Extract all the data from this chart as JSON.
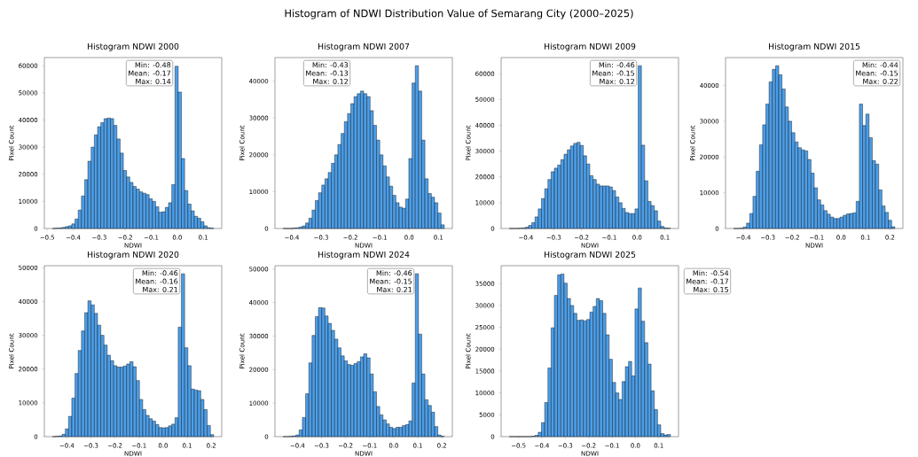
{
  "chart_data": [
    {
      "type": "other",
      "title": "Histogram of NDWI Distribution Value of Semarang City (2000–2025)"
    },
    {
      "type": "histogram",
      "title": "Histogram NDWI 2000",
      "xlabel": "NDWI",
      "ylabel": "Pixel Count",
      "color": "#4c9ee8",
      "bins": [
        -0.48,
        -0.4676,
        -0.4552,
        -0.4428,
        -0.4304,
        -0.418,
        -0.4056,
        -0.3932,
        -0.3808,
        -0.3684,
        -0.356,
        -0.3436,
        -0.3312,
        -0.3188,
        -0.3064,
        -0.294,
        -0.2816,
        -0.2692,
        -0.2568,
        -0.2444,
        -0.232,
        -0.2196,
        -0.2072,
        -0.1948,
        -0.1824,
        -0.17,
        -0.1576,
        -0.1452,
        -0.1328,
        -0.1204,
        -0.108,
        -0.0956,
        -0.0832,
        -0.0708,
        -0.0584,
        -0.046,
        -0.0336,
        -0.0212,
        -0.0088,
        0.0036,
        0.016,
        0.0284,
        0.0408,
        0.0532,
        0.0656,
        0.078,
        0.0904,
        0.1028,
        0.1152,
        0.1276,
        0.14
      ],
      "values": [
        0,
        100,
        200,
        400,
        700,
        1000,
        1700,
        3500,
        6800,
        12000,
        18000,
        24800,
        30000,
        34500,
        37500,
        39000,
        40500,
        40700,
        40500,
        38000,
        33000,
        27800,
        21400,
        19000,
        17000,
        15500,
        14500,
        13500,
        13000,
        12500,
        11000,
        10000,
        8000,
        6000,
        6200,
        7800,
        9500,
        16200,
        59800,
        50300,
        25800,
        14000,
        9000,
        6500,
        4500,
        3800,
        2500,
        1000,
        300,
        100
      ],
      "xlim": [
        -0.511,
        0.171
      ],
      "ylim": [
        0,
        63000
      ],
      "xticks": [
        {
          "value": -0.5,
          "label": "−0.5"
        },
        {
          "value": -0.4,
          "label": "−0.4"
        },
        {
          "value": -0.3,
          "label": "−0.3"
        },
        {
          "value": -0.2,
          "label": "−0.2"
        },
        {
          "value": -0.1,
          "label": "−0.1"
        },
        {
          "value": 0,
          "label": "0.0"
        },
        {
          "value": 0.1,
          "label": "0.1"
        }
      ],
      "yticks": [
        0,
        10000,
        20000,
        30000,
        40000,
        50000,
        60000
      ],
      "annotations": [
        "Min: -0.48",
        "Mean: -0.17",
        "Max: 0.14"
      ]
    },
    {
      "type": "histogram",
      "title": "Histogram NDWI 2007",
      "xlabel": "NDWI",
      "ylabel": "Pixel Count",
      "color": "#4c9ee8",
      "bins": [
        -0.43,
        -0.419,
        -0.408,
        -0.397,
        -0.386,
        -0.375,
        -0.364,
        -0.353,
        -0.342,
        -0.331,
        -0.32,
        -0.309,
        -0.298,
        -0.287,
        -0.276,
        -0.265,
        -0.254,
        -0.243,
        -0.232,
        -0.221,
        -0.21,
        -0.199,
        -0.188,
        -0.177,
        -0.166,
        -0.155,
        -0.144,
        -0.133,
        -0.122,
        -0.111,
        -0.1,
        -0.089,
        -0.078,
        -0.067,
        -0.056,
        -0.045,
        -0.034,
        -0.023,
        -0.012,
        -0.001,
        0.01,
        0.021,
        0.032,
        0.043,
        0.054,
        0.065,
        0.076,
        0.087,
        0.098,
        0.109,
        0.12
      ],
      "values": [
        0,
        0,
        0,
        100,
        200,
        400,
        700,
        1500,
        2800,
        5000,
        7600,
        9700,
        11800,
        13500,
        15200,
        17700,
        20000,
        22800,
        25800,
        29000,
        31200,
        33900,
        35800,
        36600,
        37300,
        36600,
        35800,
        32000,
        28000,
        24000,
        20000,
        17000,
        14000,
        11500,
        9000,
        7000,
        5800,
        5500,
        8000,
        19000,
        39500,
        44200,
        37300,
        24000,
        13500,
        9500,
        8500,
        7000,
        4200,
        1000
      ],
      "xlim": [
        -0.4575,
        0.1475
      ],
      "ylim": [
        0,
        46400
      ],
      "xticks": [
        {
          "value": -0.4,
          "label": "−0.4"
        },
        {
          "value": -0.3,
          "label": "−0.3"
        },
        {
          "value": -0.2,
          "label": "−0.2"
        },
        {
          "value": -0.1,
          "label": "−0.1"
        },
        {
          "value": 0,
          "label": "0.0"
        },
        {
          "value": 0.1,
          "label": "0.1"
        }
      ],
      "yticks": [
        0,
        10000,
        20000,
        30000,
        40000
      ],
      "annotations": [
        "Min: -0.43",
        "Mean: -0.13",
        "Max: 0.12"
      ]
    },
    {
      "type": "histogram",
      "title": "Histogram NDWI 2009",
      "xlabel": "NDWI",
      "ylabel": "Pixel Count",
      "color": "#4c9ee8",
      "bins": [
        -0.46,
        -0.4484,
        -0.4368,
        -0.4252,
        -0.4136,
        -0.402,
        -0.3904,
        -0.3788,
        -0.3672,
        -0.3556,
        -0.344,
        -0.3324,
        -0.3208,
        -0.3092,
        -0.2976,
        -0.286,
        -0.2744,
        -0.2628,
        -0.2512,
        -0.2396,
        -0.228,
        -0.2164,
        -0.2048,
        -0.1932,
        -0.1816,
        -0.17,
        -0.1584,
        -0.1468,
        -0.1352,
        -0.1236,
        -0.112,
        -0.1004,
        -0.0888,
        -0.0772,
        -0.0656,
        -0.054,
        -0.0424,
        -0.0308,
        -0.0192,
        -0.0076,
        0.004,
        0.0156,
        0.0272,
        0.0388,
        0.0504,
        0.062,
        0.0736,
        0.0852,
        0.0968,
        0.1084,
        0.12
      ],
      "values": [
        0,
        0,
        0,
        100,
        200,
        500,
        1200,
        2300,
        4500,
        7600,
        11600,
        15400,
        19000,
        22000,
        23400,
        24600,
        26700,
        28800,
        30500,
        32000,
        33000,
        33400,
        32200,
        28200,
        25000,
        20500,
        19000,
        17200,
        16500,
        16500,
        16500,
        16100,
        14700,
        12200,
        10000,
        7800,
        6200,
        5800,
        5800,
        7600,
        63100,
        32300,
        18500,
        10500,
        8900,
        6900,
        2900,
        800,
        200,
        100
      ],
      "xlim": [
        -0.489,
        0.149
      ],
      "ylim": [
        0,
        66250
      ],
      "xticks": [
        {
          "value": -0.4,
          "label": "−0.4"
        },
        {
          "value": -0.3,
          "label": "−0.3"
        },
        {
          "value": -0.2,
          "label": "−0.2"
        },
        {
          "value": -0.1,
          "label": "−0.1"
        },
        {
          "value": 0,
          "label": "0.0"
        },
        {
          "value": 0.1,
          "label": "0.1"
        }
      ],
      "yticks": [
        0,
        10000,
        20000,
        30000,
        40000,
        50000,
        60000
      ],
      "annotations": [
        "Min: -0.46",
        "Mean: -0.15",
        "Max: 0.12"
      ]
    },
    {
      "type": "histogram",
      "title": "Histogram NDWI 2015",
      "xlabel": "NDWI",
      "ylabel": "Pixel Count",
      "color": "#4c9ee8",
      "bins": [
        -0.44,
        -0.4268,
        -0.4136,
        -0.4004,
        -0.3872,
        -0.374,
        -0.3608,
        -0.3476,
        -0.3344,
        -0.3212,
        -0.308,
        -0.2948,
        -0.2816,
        -0.2684,
        -0.2552,
        -0.242,
        -0.2288,
        -0.2156,
        -0.2024,
        -0.1892,
        -0.176,
        -0.1628,
        -0.1496,
        -0.1364,
        -0.1232,
        -0.11,
        -0.0968,
        -0.0836,
        -0.0704,
        -0.0572,
        -0.044,
        -0.0308,
        -0.0176,
        -0.0044,
        0.0088,
        0.022,
        0.0352,
        0.0484,
        0.0616,
        0.0748,
        0.088,
        0.1012,
        0.1144,
        0.1276,
        0.1408,
        0.154,
        0.1672,
        0.1804,
        0.1936,
        0.2068,
        0.22
      ],
      "values": [
        0,
        0,
        100,
        400,
        1500,
        4200,
        9000,
        16000,
        23400,
        29000,
        34800,
        41000,
        44500,
        45500,
        43000,
        39000,
        34000,
        30000,
        26800,
        24200,
        22600,
        22000,
        21700,
        19300,
        15500,
        11400,
        8000,
        6600,
        5000,
        4000,
        3200,
        2800,
        2800,
        3200,
        3700,
        4100,
        4200,
        4400,
        7600,
        34800,
        28800,
        32000,
        25400,
        19000,
        18000,
        10800,
        6300,
        4500,
        2300,
        500
      ],
      "xlim": [
        -0.473,
        0.253
      ],
      "ylim": [
        0,
        47800
      ],
      "xticks": [
        {
          "value": -0.4,
          "label": "−0.4"
        },
        {
          "value": -0.3,
          "label": "−0.3"
        },
        {
          "value": -0.2,
          "label": "−0.2"
        },
        {
          "value": -0.1,
          "label": "−0.1"
        },
        {
          "value": 0,
          "label": "0.0"
        },
        {
          "value": 0.1,
          "label": "0.1"
        },
        {
          "value": 0.2,
          "label": "0.2"
        }
      ],
      "yticks": [
        0,
        10000,
        20000,
        30000,
        40000
      ],
      "annotations": [
        "Min: -0.44",
        "Mean: -0.15",
        "Max: 0.22"
      ]
    },
    {
      "type": "histogram",
      "title": "Histogram NDWI 2020",
      "xlabel": "NDWI",
      "ylabel": "Pixel Count",
      "color": "#4c9ee8",
      "bins": [
        -0.46,
        -0.4466,
        -0.4332,
        -0.4198,
        -0.4064,
        -0.393,
        -0.3796,
        -0.3662,
        -0.3528,
        -0.3394,
        -0.326,
        -0.3126,
        -0.2992,
        -0.2858,
        -0.2724,
        -0.259,
        -0.2456,
        -0.2322,
        -0.2188,
        -0.2054,
        -0.192,
        -0.1786,
        -0.1652,
        -0.1518,
        -0.1384,
        -0.125,
        -0.1116,
        -0.0982,
        -0.0848,
        -0.0714,
        -0.058,
        -0.0446,
        -0.0312,
        -0.0178,
        -0.0044,
        0.009,
        0.0224,
        0.0358,
        0.0492,
        0.0626,
        0.076,
        0.0894,
        0.1028,
        0.1162,
        0.1296,
        0.143,
        0.1564,
        0.1698,
        0.1832,
        0.1966,
        0.21
      ],
      "values": [
        0,
        100,
        200,
        700,
        2300,
        6000,
        11400,
        18700,
        25500,
        31300,
        36700,
        40200,
        39000,
        36500,
        33000,
        30000,
        27100,
        24100,
        22500,
        21000,
        20600,
        20600,
        20900,
        21500,
        22200,
        20700,
        16600,
        11000,
        8000,
        6300,
        5300,
        4600,
        3600,
        2700,
        2600,
        2700,
        3200,
        3700,
        5600,
        32400,
        48200,
        26300,
        21000,
        14100,
        13800,
        13600,
        11000,
        8000,
        3300,
        600
      ],
      "xlim": [
        -0.4935,
        0.2435
      ],
      "ylim": [
        0,
        50600
      ],
      "xticks": [
        {
          "value": -0.4,
          "label": "−0.4"
        },
        {
          "value": -0.3,
          "label": "−0.3"
        },
        {
          "value": -0.2,
          "label": "−0.2"
        },
        {
          "value": -0.1,
          "label": "−0.1"
        },
        {
          "value": 0,
          "label": "0.0"
        },
        {
          "value": 0.1,
          "label": "0.1"
        },
        {
          "value": 0.2,
          "label": "0.2"
        }
      ],
      "yticks": [
        0,
        10000,
        20000,
        30000,
        40000,
        50000
      ],
      "annotations": [
        "Min: -0.46",
        "Mean: -0.16",
        "Max: 0.21"
      ]
    },
    {
      "type": "histogram",
      "title": "Histogram NDWI 2024",
      "xlabel": "NDWI",
      "ylabel": "Pixel Count",
      "color": "#4c9ee8",
      "bins": [
        -0.46,
        -0.4466,
        -0.4332,
        -0.4198,
        -0.4064,
        -0.393,
        -0.3796,
        -0.3662,
        -0.3528,
        -0.3394,
        -0.326,
        -0.3126,
        -0.2992,
        -0.2858,
        -0.2724,
        -0.259,
        -0.2456,
        -0.2322,
        -0.2188,
        -0.2054,
        -0.192,
        -0.1786,
        -0.1652,
        -0.1518,
        -0.1384,
        -0.125,
        -0.1116,
        -0.0982,
        -0.0848,
        -0.0714,
        -0.058,
        -0.0446,
        -0.0312,
        -0.0178,
        -0.0044,
        0.009,
        0.0224,
        0.0358,
        0.0492,
        0.0626,
        0.076,
        0.0894,
        0.1028,
        0.1162,
        0.1296,
        0.143,
        0.1564,
        0.1698,
        0.1832,
        0.1966,
        0.21
      ],
      "values": [
        0,
        0,
        100,
        200,
        500,
        2000,
        5700,
        12800,
        22000,
        30200,
        35800,
        38500,
        38400,
        36000,
        33800,
        31700,
        29100,
        26500,
        24100,
        22600,
        21500,
        21300,
        21800,
        22400,
        23800,
        24700,
        23500,
        18700,
        13400,
        9000,
        6500,
        5000,
        3800,
        2800,
        2400,
        2800,
        2800,
        3300,
        3600,
        4700,
        16000,
        48600,
        30600,
        18700,
        11000,
        9300,
        7300,
        3000,
        500,
        100
      ],
      "xlim": [
        -0.4935,
        0.2435
      ],
      "ylim": [
        0,
        51000
      ],
      "xticks": [
        {
          "value": -0.4,
          "label": "−0.4"
        },
        {
          "value": -0.3,
          "label": "−0.3"
        },
        {
          "value": -0.2,
          "label": "−0.2"
        },
        {
          "value": -0.1,
          "label": "−0.1"
        },
        {
          "value": 0,
          "label": "0.0"
        },
        {
          "value": 0.1,
          "label": "0.1"
        },
        {
          "value": 0.2,
          "label": "0.2"
        }
      ],
      "yticks": [
        0,
        10000,
        20000,
        30000,
        40000,
        50000
      ],
      "annotations": [
        "Min: -0.46",
        "Mean: -0.15",
        "Max: 0.21"
      ]
    },
    {
      "type": "histogram",
      "title": "Histogram NDWI 2025",
      "xlabel": "NDWI",
      "ylabel": "Pixel Count",
      "color": "#4c9ee8",
      "bins": [
        -0.54,
        -0.5262,
        -0.5124,
        -0.4986,
        -0.4848,
        -0.471,
        -0.4572,
        -0.4434,
        -0.4296,
        -0.4158,
        -0.402,
        -0.3882,
        -0.3744,
        -0.3606,
        -0.3468,
        -0.333,
        -0.3192,
        -0.3054,
        -0.2916,
        -0.2778,
        -0.264,
        -0.2502,
        -0.2364,
        -0.2226,
        -0.2088,
        -0.195,
        -0.1812,
        -0.1674,
        -0.1536,
        -0.1398,
        -0.126,
        -0.1122,
        -0.0984,
        -0.0846,
        -0.0708,
        -0.057,
        -0.0432,
        -0.0294,
        -0.0156,
        -0.0018,
        0.012,
        0.0258,
        0.0396,
        0.0534,
        0.0672,
        0.081,
        0.0948,
        0.1086,
        0.1224,
        0.1362,
        0.15
      ],
      "values": [
        0,
        0,
        0,
        0,
        0,
        0,
        0,
        100,
        300,
        1000,
        3200,
        7800,
        15700,
        24900,
        32300,
        37000,
        37200,
        35100,
        31600,
        30000,
        28200,
        26600,
        26700,
        26500,
        26800,
        28500,
        29800,
        31600,
        31100,
        28200,
        23300,
        17700,
        12400,
        10000,
        8500,
        12600,
        16000,
        17200,
        13900,
        29200,
        34000,
        26400,
        21500,
        16600,
        10500,
        6200,
        2700,
        700,
        400,
        500
      ],
      "xlim": [
        -0.5745,
        0.1845
      ],
      "ylim": [
        0,
        39100
      ],
      "xticks": [
        {
          "value": -0.5,
          "label": "−0.5"
        },
        {
          "value": -0.4,
          "label": "−0.4"
        },
        {
          "value": -0.3,
          "label": "−0.3"
        },
        {
          "value": -0.2,
          "label": "−0.2"
        },
        {
          "value": -0.1,
          "label": "−0.1"
        },
        {
          "value": 0,
          "label": "0.0"
        },
        {
          "value": 0.1,
          "label": "0.1"
        }
      ],
      "yticks": [
        0,
        5000,
        10000,
        15000,
        20000,
        25000,
        30000,
        35000
      ],
      "annotations": [
        "Min: -0.54",
        "Mean: -0.17",
        "Max: 0.15"
      ]
    }
  ]
}
